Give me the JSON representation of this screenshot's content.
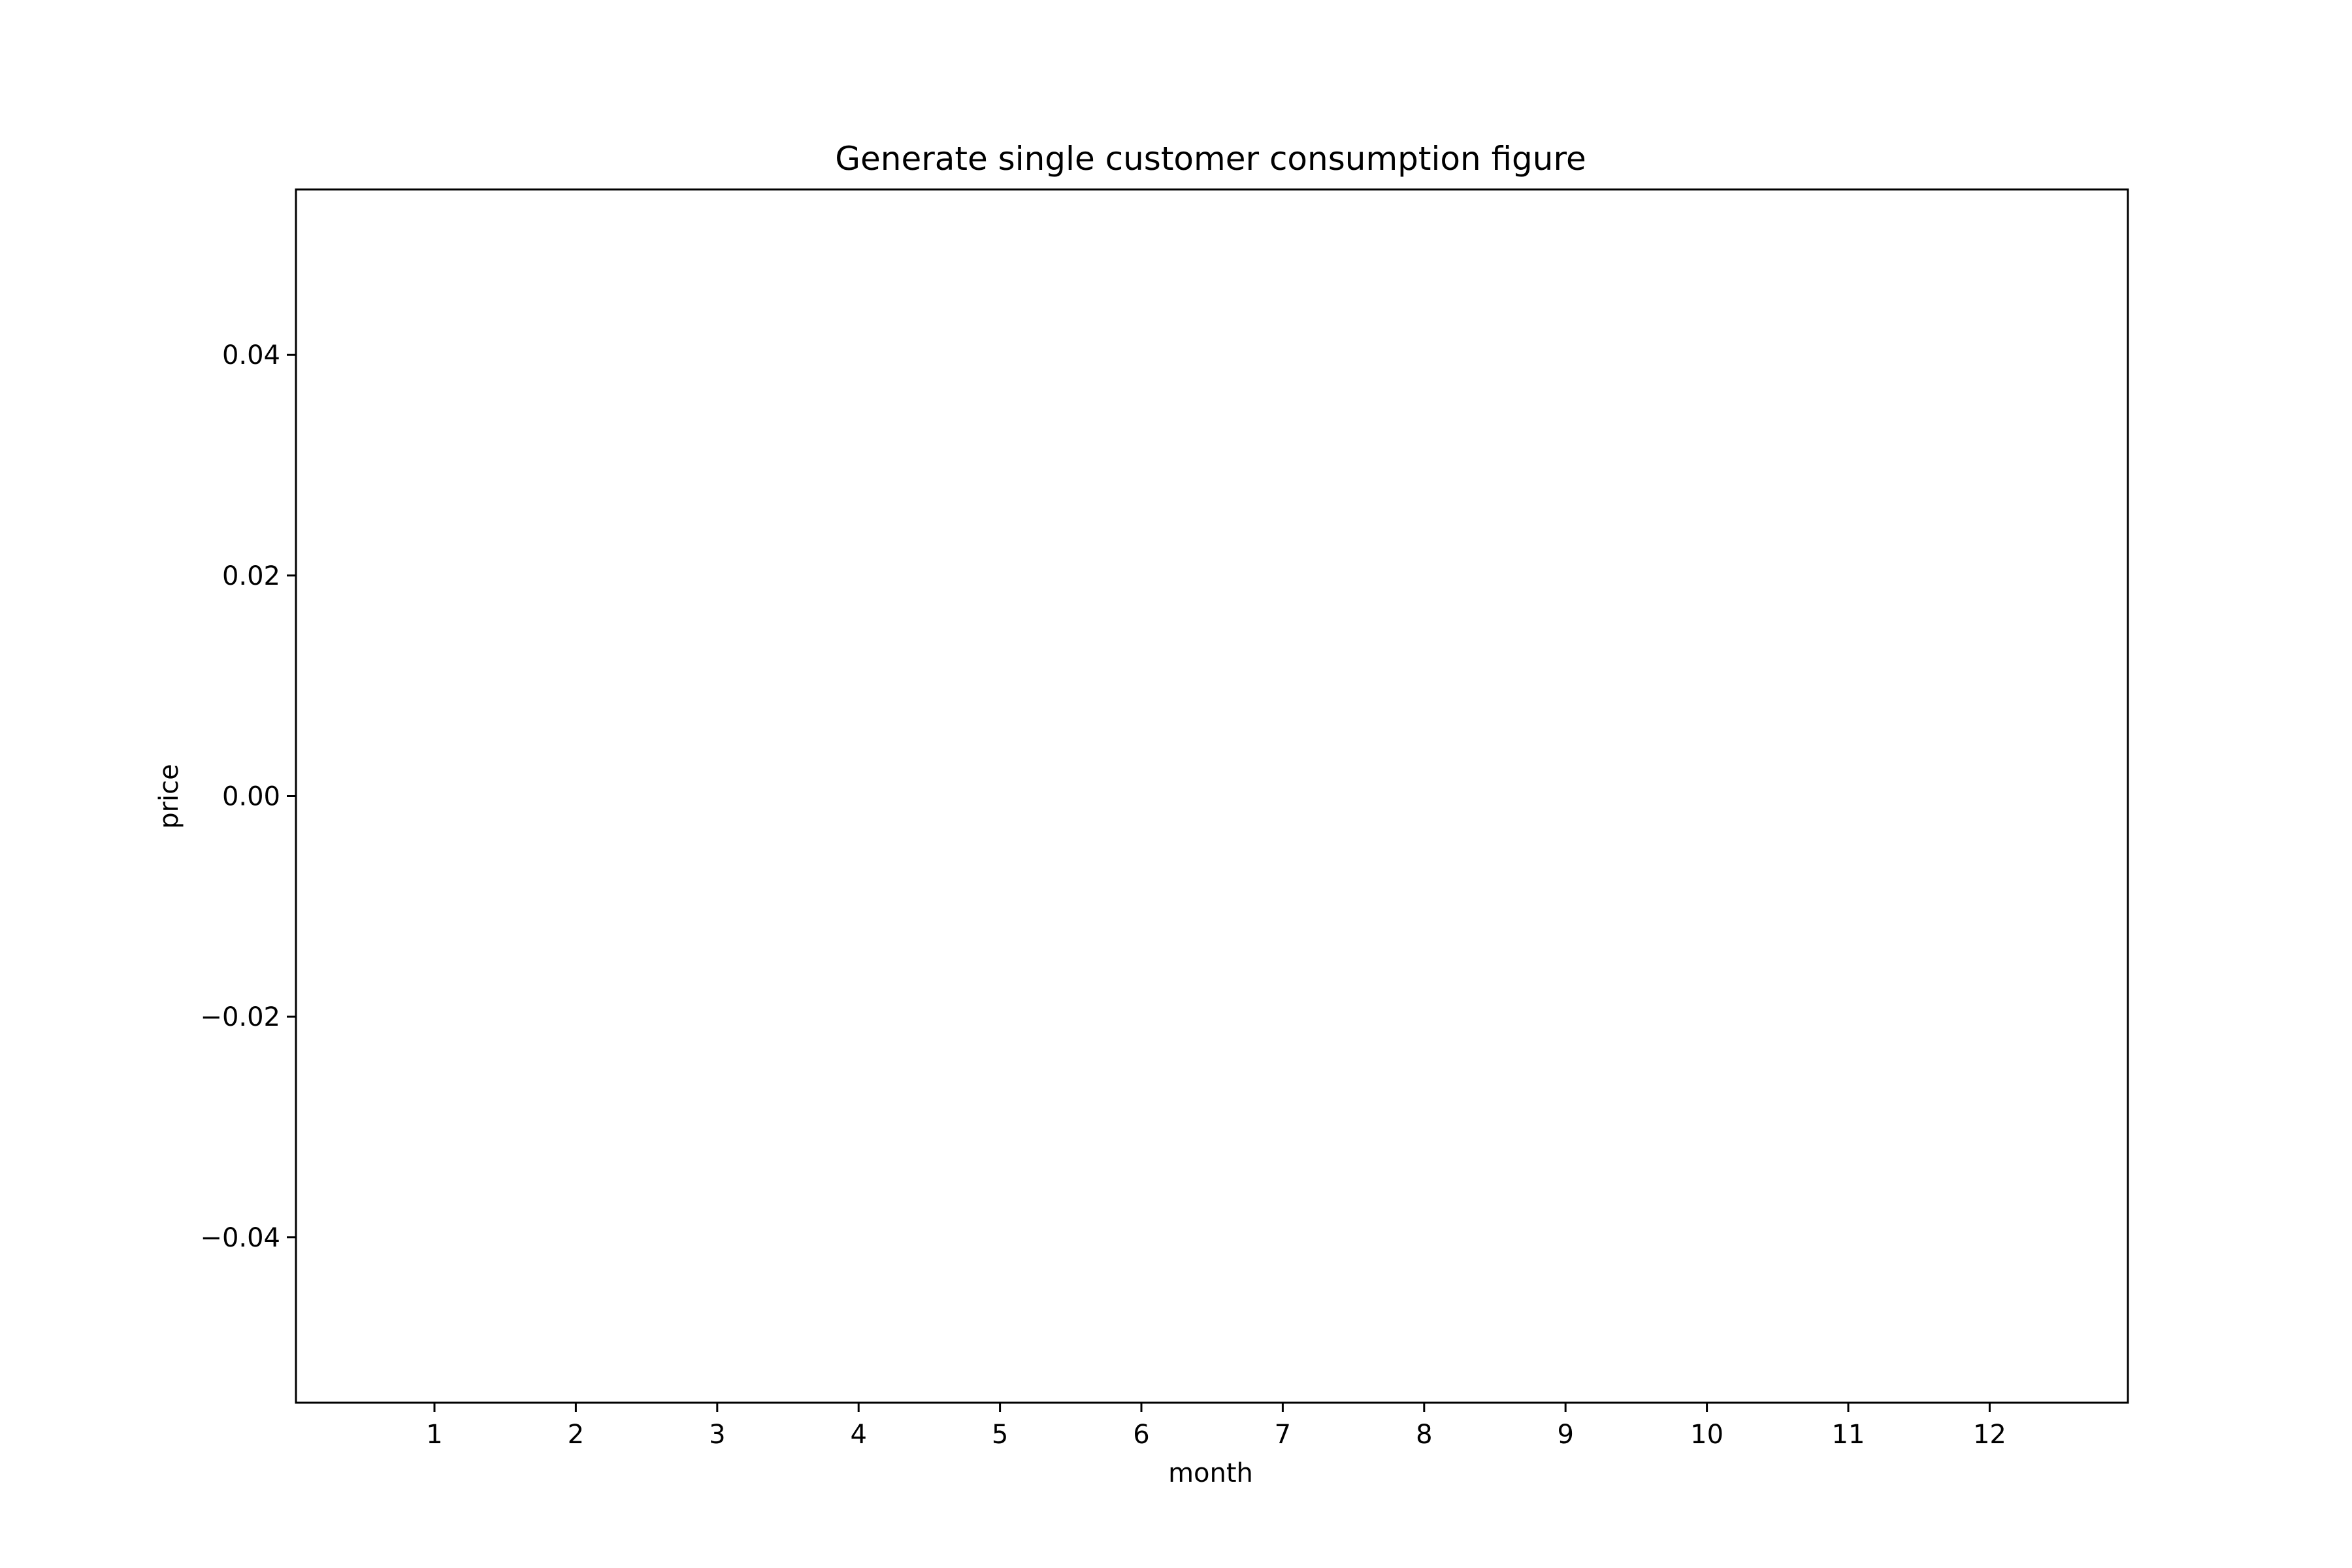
{
  "chart_data": {
    "type": "bar",
    "title": "Generate single customer consumption figure",
    "xlabel": "month",
    "ylabel": "price",
    "categories": [
      "1",
      "2",
      "3",
      "4",
      "5",
      "6",
      "7",
      "8",
      "9",
      "10",
      "11",
      "12"
    ],
    "values": [
      0,
      0,
      0,
      0,
      0,
      0,
      0,
      0,
      0,
      0,
      0,
      0
    ],
    "ylim": [
      -0.055,
      0.055
    ],
    "yticks": [
      0.04,
      0.02,
      0.0,
      -0.02,
      -0.04
    ],
    "ytick_labels": [
      "0.04",
      "0.02",
      "0.00",
      "−0.02",
      "−0.04"
    ],
    "grid": false,
    "legend": "none"
  }
}
